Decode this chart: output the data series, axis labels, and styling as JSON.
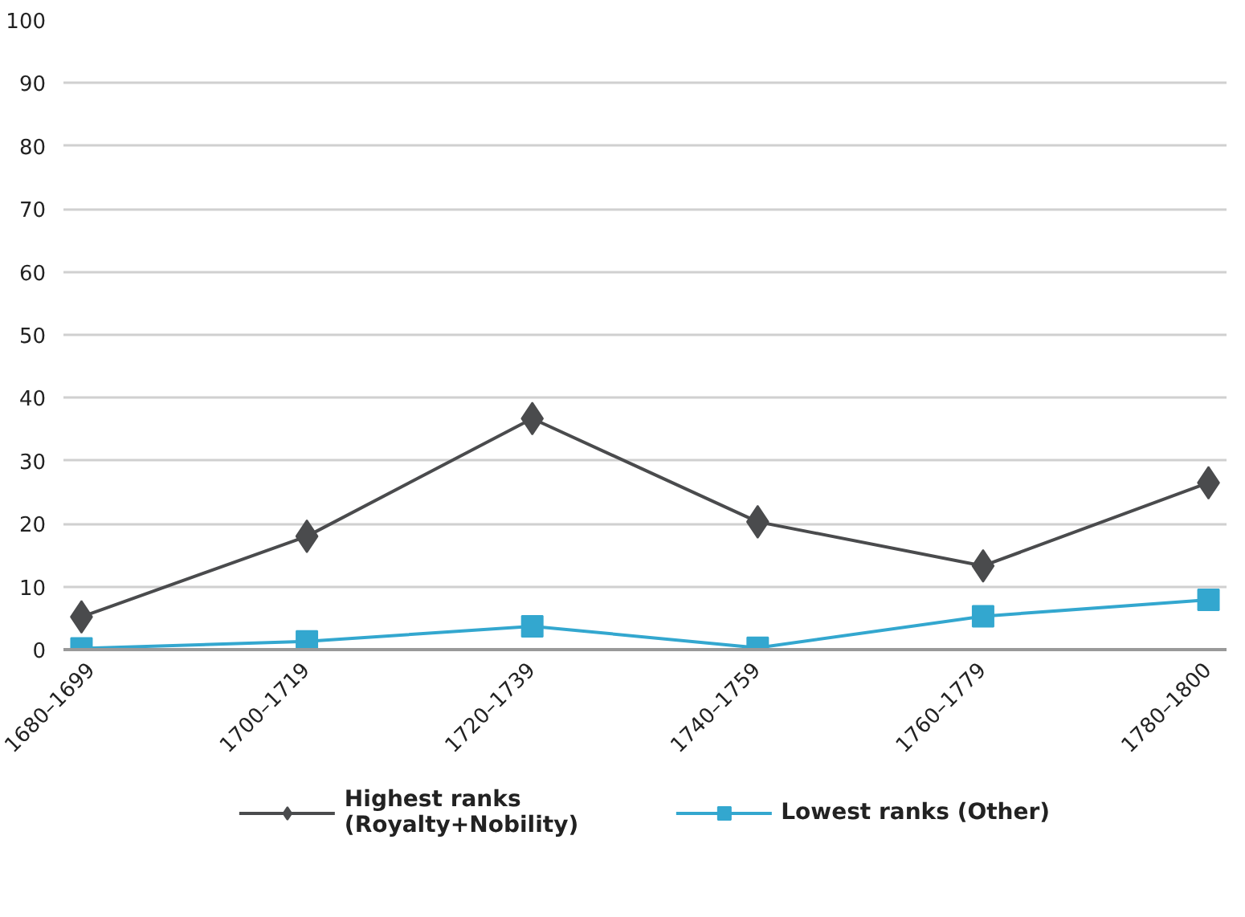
{
  "chart_data": {
    "type": "line",
    "categories": [
      "1680–1699",
      "1700–1719",
      "1720–1739",
      "1740–1759",
      "1760–1779",
      "1780–1800"
    ],
    "series": [
      {
        "name": "Highest ranks\n(Royalty+Nobility)",
        "color": "#4a4b4d",
        "marker": "diamond",
        "values": [
          5.2,
          18,
          36.7,
          20.3,
          13.3,
          26.5
        ]
      },
      {
        "name": "Lowest ranks (Other)",
        "color": "#33a7cf",
        "marker": "square",
        "values": [
          0.2,
          1.3,
          3.7,
          0.3,
          5.3,
          7.9
        ]
      }
    ],
    "ylim": [
      0,
      100
    ],
    "yticks": [
      0,
      10,
      20,
      30,
      40,
      50,
      60,
      70,
      80,
      90,
      100
    ],
    "grid": "y",
    "legend": "bottom",
    "line_style": "solid"
  }
}
